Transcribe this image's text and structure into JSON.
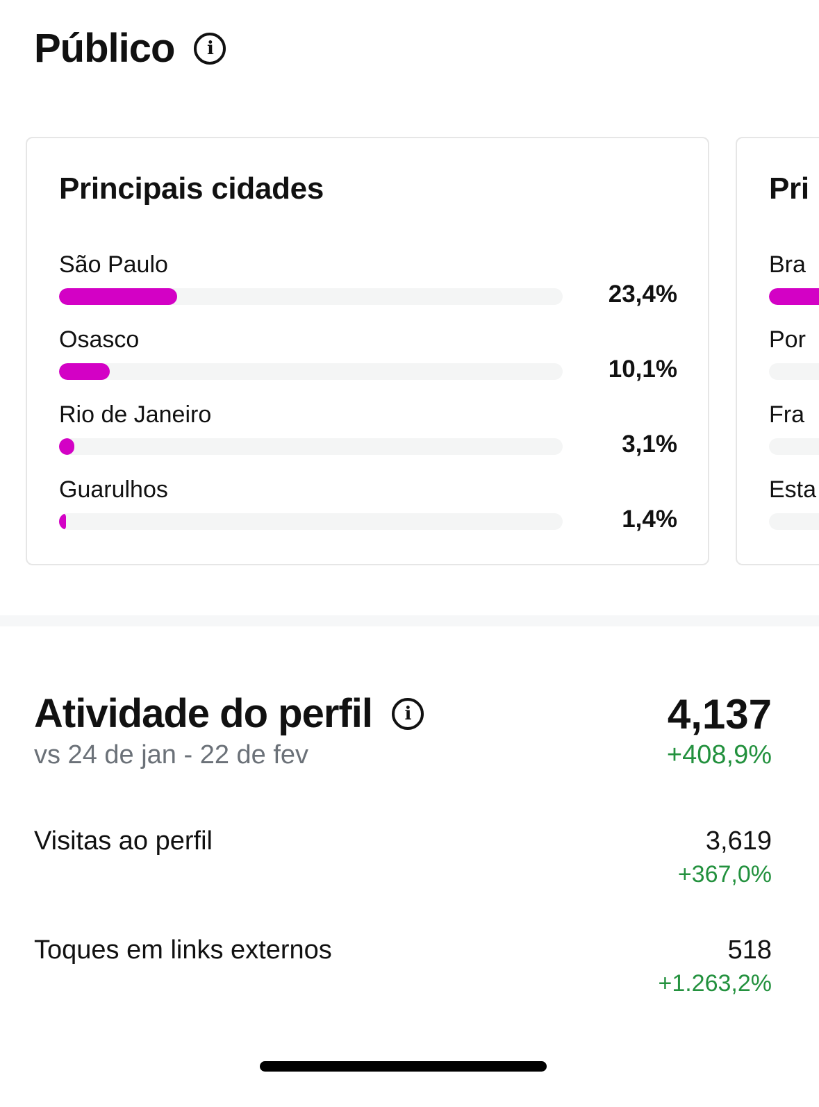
{
  "header": {
    "title": "Público"
  },
  "cities_card": {
    "title": "Principais cidades",
    "rows": [
      {
        "label": "São Paulo",
        "value": "23,4%",
        "fraction": 0.234
      },
      {
        "label": "Osasco",
        "value": "10,1%",
        "fraction": 0.101
      },
      {
        "label": "Rio de Janeiro",
        "value": "3,1%",
        "fraction": 0.031
      },
      {
        "label": "Guarulhos",
        "value": "1,4%",
        "fraction": 0.014
      }
    ]
  },
  "countries_card_partial": {
    "title": "Pri",
    "rows": [
      {
        "label": "Bra"
      },
      {
        "label": "Por"
      },
      {
        "label": "Fra"
      },
      {
        "label": "Esta"
      }
    ]
  },
  "activity": {
    "title": "Atividade do perfil",
    "subtitle": "vs 24 de jan - 22 de fev",
    "total": "4,137",
    "total_change": "+408,9%",
    "metrics": [
      {
        "label": "Visitas ao perfil",
        "value": "3,619",
        "change": "+367,0%"
      },
      {
        "label": "Toques em links externos",
        "value": "518",
        "change": "+1.263,2%"
      }
    ]
  },
  "colors": {
    "bar_fill": "#d301c5",
    "bar_track": "#f4f5f5",
    "positive_change": "#23913e",
    "muted_text": "#6b7178"
  },
  "icons": [
    "info-icon"
  ]
}
